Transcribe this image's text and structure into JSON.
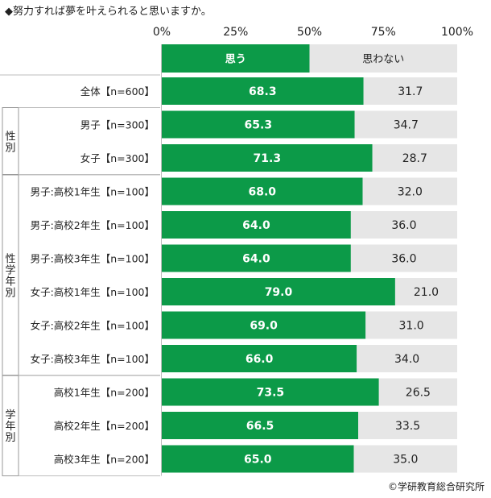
{
  "title": "◆努力すれば夢を叶えられると思いますか。",
  "credit": "©学研教育総合研究所",
  "colors": {
    "agree": "#0c9a48",
    "disagree": "#e6e6e6",
    "divider": "#bdbdbd"
  },
  "chart_data": {
    "type": "bar",
    "orientation": "horizontal",
    "stacked": true,
    "xlim": [
      0,
      100
    ],
    "x_ticks": [
      "0%",
      "25%",
      "50%",
      "75%",
      "100%"
    ],
    "legend": {
      "placement": "top",
      "agree": "思う",
      "disagree": "思わない"
    },
    "categories": [
      "全体【n=600】",
      "男子【n=300】",
      "女子【n=300】",
      "男子:高校1年生【n=100】",
      "男子:高校2年生【n=100】",
      "男子:高校3年生【n=100】",
      "女子:高校1年生【n=100】",
      "女子:高校2年生【n=100】",
      "女子:高校3年生【n=100】",
      "高校1年生【n=200】",
      "高校2年生【n=200】",
      "高校3年生【n=200】"
    ],
    "series": [
      {
        "name": "思う",
        "values": [
          68.3,
          65.3,
          71.3,
          68.0,
          64.0,
          64.0,
          79.0,
          69.0,
          66.0,
          73.5,
          66.5,
          65.0
        ]
      },
      {
        "name": "思わない",
        "values": [
          31.7,
          34.7,
          28.7,
          32.0,
          36.0,
          36.0,
          21.0,
          31.0,
          34.0,
          26.5,
          33.5,
          35.0
        ]
      }
    ],
    "groups": [
      {
        "label": "性別",
        "rows": [
          1,
          2
        ]
      },
      {
        "label": "性学年別",
        "rows": [
          3,
          8
        ]
      },
      {
        "label": "学年別",
        "rows": [
          9,
          11
        ]
      }
    ]
  }
}
